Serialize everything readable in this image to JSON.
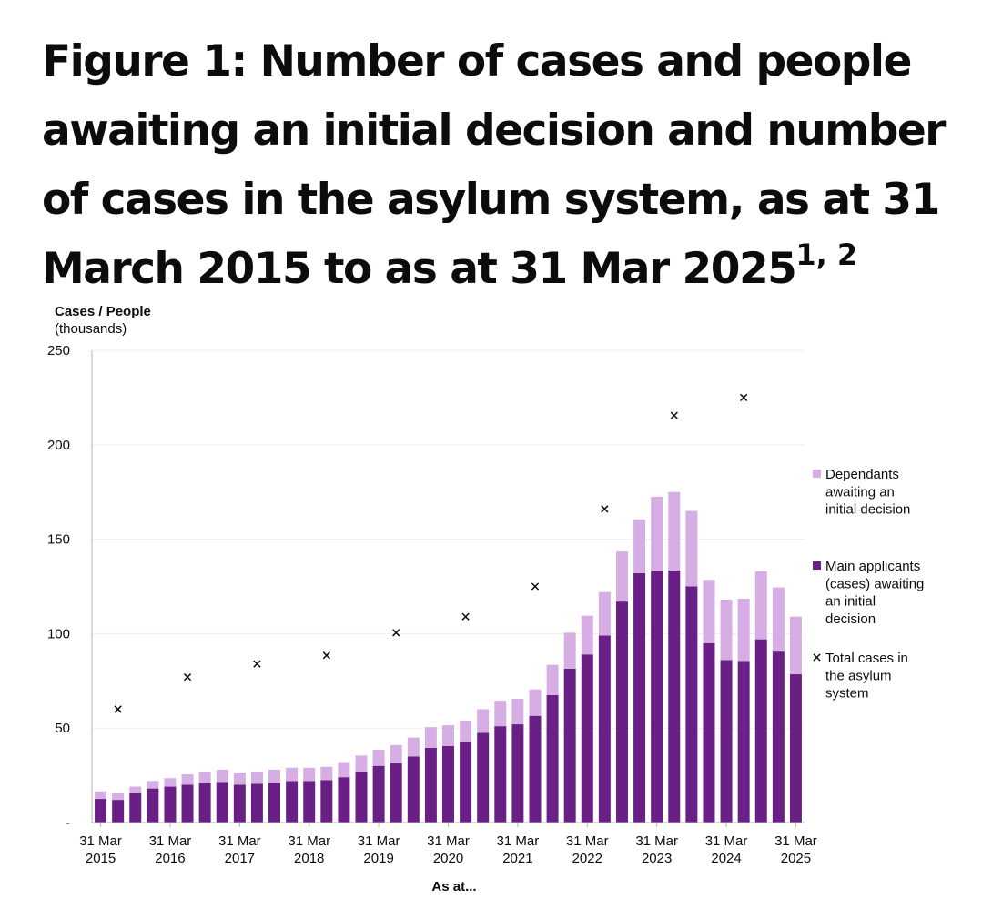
{
  "title": {
    "main": "Figure 1: Number of cases and people awaiting an initial decision and number of cases in the asylum system, as at 31 March 2015 to as at 31 Mar 2025",
    "superscript": "1, 2"
  },
  "chart_data": {
    "type": "bar",
    "stacked": true,
    "ylabel": "Cases / People",
    "ylabel_sub": "(thousands)",
    "xlabel": "As at...",
    "ylim": [
      0,
      250
    ],
    "yticks": [
      0,
      50,
      100,
      150,
      200,
      250
    ],
    "ytick_labels": [
      "-",
      "50",
      "100",
      "150",
      "200",
      "250"
    ],
    "grid": true,
    "legend_position": "right",
    "x_tick_labels": [
      {
        "line1": "31 Mar",
        "line2": "2015",
        "index": 0
      },
      {
        "line1": "31 Mar",
        "line2": "2016",
        "index": 4
      },
      {
        "line1": "31 Mar",
        "line2": "2017",
        "index": 8
      },
      {
        "line1": "31 Mar",
        "line2": "2018",
        "index": 12
      },
      {
        "line1": "31 Mar",
        "line2": "2019",
        "index": 16
      },
      {
        "line1": "31 Mar",
        "line2": "2020",
        "index": 20
      },
      {
        "line1": "31 Mar",
        "line2": "2021",
        "index": 24
      },
      {
        "line1": "31 Mar",
        "line2": "2022",
        "index": 28
      },
      {
        "line1": "31 Mar",
        "line2": "2023",
        "index": 32
      },
      {
        "line1": "31 Mar",
        "line2": "2024",
        "index": 36
      },
      {
        "line1": "31 Mar",
        "line2": "2025",
        "index": 40
      }
    ],
    "series": [
      {
        "name": "Main applicants (cases) awaiting an initial decision",
        "color": "#6a1f86",
        "values": [
          12.5,
          12.0,
          15.5,
          18.0,
          19.0,
          20.0,
          21.0,
          21.5,
          20.0,
          20.5,
          21.0,
          22.0,
          22.0,
          22.5,
          24.0,
          27.0,
          30.0,
          31.5,
          35.0,
          39.5,
          40.5,
          42.5,
          47.5,
          51.0,
          52.0,
          56.5,
          67.5,
          81.5,
          89.0,
          99.0,
          117.0,
          132.0,
          133.5,
          133.5,
          125.0,
          95.0,
          86.0,
          85.5,
          97.0,
          90.5,
          78.5
        ]
      },
      {
        "name": "Dependants awaiting an initial decision",
        "color": "#d7aee3",
        "values": [
          4.0,
          3.5,
          3.5,
          4.0,
          4.5,
          5.5,
          6.0,
          6.5,
          6.5,
          6.5,
          7.0,
          7.0,
          7.0,
          7.0,
          8.0,
          8.5,
          8.5,
          9.5,
          10.0,
          11.0,
          11.0,
          11.5,
          12.5,
          13.5,
          13.5,
          14.0,
          16.0,
          19.0,
          20.5,
          23.0,
          26.5,
          28.5,
          39.0,
          41.5,
          40.0,
          33.5,
          32.0,
          33.0,
          36.0,
          34.0,
          30.5
        ]
      },
      {
        "name": "Total cases in the asylum system",
        "marker": "×",
        "indices": [
          1,
          5,
          9,
          13,
          17,
          21,
          25,
          29,
          33,
          37
        ],
        "values": [
          60.0,
          77.0,
          84.0,
          88.5,
          100.5,
          109.0,
          125.0,
          166.0,
          215.5,
          225.0
        ]
      }
    ],
    "legend": [
      {
        "label": "Dependants awaiting an initial decision",
        "lines": [
          "Dependants",
          "awaiting an",
          "initial decision"
        ],
        "swatch": "#d7aee3",
        "kind": "square"
      },
      {
        "label": "Main applicants (cases) awaiting an initial decision",
        "lines": [
          "Main applicants",
          "(cases) awaiting",
          "an initial",
          "decision"
        ],
        "swatch": "#6a1f86",
        "kind": "square"
      },
      {
        "label": "Total cases in the asylum system",
        "lines": [
          "Total cases in",
          "the asylum",
          "system"
        ],
        "swatch": "#0b0c0c",
        "kind": "cross"
      }
    ]
  }
}
